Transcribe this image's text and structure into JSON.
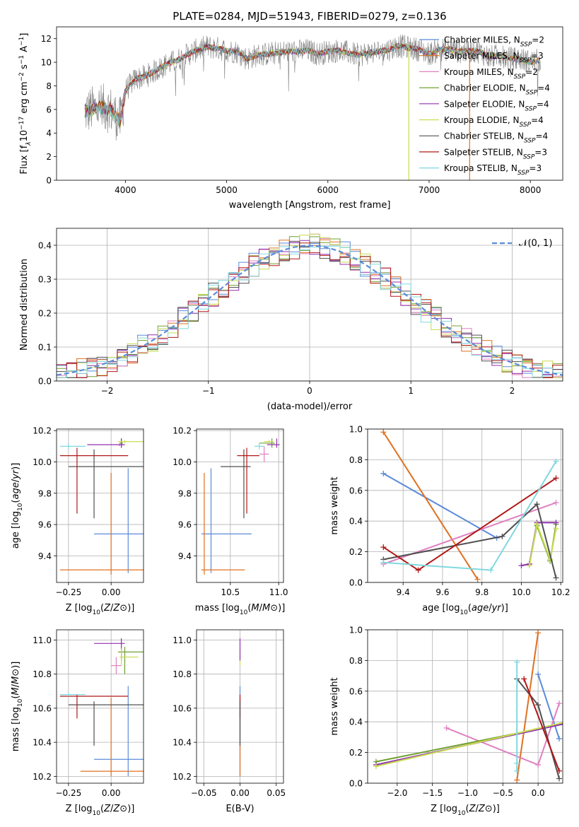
{
  "figure": {
    "title": "PLATE=0284, MJD=51943, FIBERID=0279, z=0.136"
  },
  "colors": {
    "Chabrier MILES": "#5b8bd9",
    "Salpeter MILES": "#e07020",
    "Kroupa MILES": "#e080c0",
    "Chabrier ELODIE": "#70a030",
    "Salpeter ELODIE": "#9030b0",
    "Kroupa ELODIE": "#c8dc50",
    "Chabrier STELIB": "#505050",
    "Salpeter STELIB": "#b01818",
    "Kroupa STELIB": "#80d8e0",
    "spectrum": "#808080",
    "gaussian": "#5b8bd9",
    "grid": "#b0b0b0"
  },
  "chart_data": [
    {
      "type": "line",
      "title": "PLATE=0284, MJD=51943, FIBERID=0279, z=0.136",
      "xlabel": "wavelength [Angstrom, rest frame]",
      "ylabel": "Flux [f_λ 10^-17 erg cm^-2 s^-1 A^-1]",
      "xlim": [
        3320,
        8320
      ],
      "ylim": [
        0,
        13
      ],
      "xticks": [
        4000,
        5000,
        6000,
        7000,
        8000
      ],
      "yticks": [
        0,
        2,
        4,
        6,
        8,
        10,
        12
      ],
      "grid": false,
      "legend": "upper right",
      "legend_entries": [
        {
          "model": "Chabrier MILES",
          "label": "Chabrier MILES, N",
          "sub": "SSP",
          "suffix": "=2"
        },
        {
          "model": "Salpeter MILES",
          "label": "Salpeter MILES, N",
          "sub": "SSP",
          "suffix": "=3"
        },
        {
          "model": "Kroupa MILES",
          "label": "Kroupa MILES, N",
          "sub": "SSP",
          "suffix": "=2"
        },
        {
          "model": "Chabrier ELODIE",
          "label": "Chabrier ELODIE, N",
          "sub": "SSP",
          "suffix": "=4"
        },
        {
          "model": "Salpeter ELODIE",
          "label": "Salpeter ELODIE, N",
          "sub": "SSP",
          "suffix": "=4"
        },
        {
          "model": "Kroupa ELODIE",
          "label": "Kroupa ELODIE, N",
          "sub": "SSP",
          "suffix": "=4"
        },
        {
          "model": "Chabrier STELIB",
          "label": "Chabrier STELIB, N",
          "sub": "SSP",
          "suffix": "=4"
        },
        {
          "model": "Salpeter STELIB",
          "label": "Salpeter STELIB, N",
          "sub": "SSP",
          "suffix": "=3"
        },
        {
          "model": "Kroupa STELIB",
          "label": "Kroupa STELIB, N",
          "sub": "SSP",
          "suffix": "=3"
        }
      ],
      "continuum": [
        [
          3600,
          5.8
        ],
        [
          3750,
          6.2
        ],
        [
          3850,
          6.0
        ],
        [
          3950,
          5.0
        ],
        [
          4000,
          7.6
        ],
        [
          4100,
          8.6
        ],
        [
          4200,
          8.8
        ],
        [
          4300,
          9.3
        ],
        [
          4400,
          9.8
        ],
        [
          4500,
          10.1
        ],
        [
          4600,
          10.6
        ],
        [
          4700,
          11.0
        ],
        [
          4800,
          11.3
        ],
        [
          4900,
          11.2
        ],
        [
          5000,
          11.0
        ],
        [
          5100,
          10.9
        ],
        [
          5200,
          10.3
        ],
        [
          5300,
          10.6
        ],
        [
          5400,
          10.7
        ],
        [
          5500,
          10.8
        ],
        [
          5600,
          10.9
        ],
        [
          5700,
          10.9
        ],
        [
          5800,
          11.0
        ],
        [
          5900,
          10.7
        ],
        [
          6000,
          10.9
        ],
        [
          6100,
          11.0
        ],
        [
          6200,
          10.8
        ],
        [
          6300,
          10.6
        ],
        [
          6400,
          10.8
        ],
        [
          6500,
          10.9
        ],
        [
          6600,
          11.1
        ],
        [
          6700,
          11.4
        ],
        [
          6800,
          11.2
        ],
        [
          6900,
          11.1
        ],
        [
          7000,
          10.7
        ],
        [
          7100,
          11.1
        ],
        [
          7200,
          11.1
        ],
        [
          7300,
          10.9
        ],
        [
          7400,
          11.0
        ],
        [
          7500,
          10.9
        ],
        [
          7600,
          10.4
        ],
        [
          7700,
          10.6
        ],
        [
          7800,
          10.3
        ],
        [
          7900,
          10.3
        ],
        [
          8000,
          10.0
        ],
        [
          8100,
          10.2
        ]
      ],
      "model_range": [
        3600,
        8100
      ],
      "gaps": [
        {
          "model": "Kroupa ELODIE",
          "from": 6800,
          "to": 6810
        },
        {
          "model": "Salpeter MILES",
          "from": 7400,
          "to": 7410
        }
      ]
    },
    {
      "type": "step",
      "xlabel": "(data-model)/error",
      "ylabel": "Normed distribution",
      "xlim": [
        -2.5,
        2.5
      ],
      "ylim": [
        0,
        0.45
      ],
      "xticks": [
        -2,
        -1,
        0,
        1,
        2
      ],
      "yticks": [
        0.0,
        0.1,
        0.2,
        0.3,
        0.4
      ],
      "grid": true,
      "legend": "upper right",
      "legend_label": "𝒩(0, 1)",
      "bins": 50,
      "gaussian": {
        "mean": 0,
        "sigma": 1
      }
    },
    {
      "type": "errorbar",
      "xlabel": "Z [log10(Z/Z⊙)]",
      "ylabel": "age  [log10(age/yr)]",
      "xlim": [
        -0.32,
        0.19
      ],
      "ylim": [
        9.23,
        10.21
      ],
      "xticks": [
        -0.25,
        0.0
      ],
      "yticks": [
        9.4,
        9.6,
        9.8,
        10.0,
        10.2
      ],
      "grid": true,
      "points": [
        {
          "model": "Chabrier MILES",
          "x": 0.1,
          "xerr": [
            0.2,
            0.1
          ],
          "y": 9.54,
          "yerr": [
            0.25,
            0.42
          ]
        },
        {
          "model": "Salpeter MILES",
          "x": 0.0,
          "xerr": [
            0.3,
            0.25
          ],
          "y": 9.31,
          "yerr": [
            0.03,
            0.62
          ]
        },
        {
          "model": "Kroupa MILES",
          "x": 0.05,
          "xerr": [
            0.02,
            0.03
          ],
          "y": 10.11,
          "yerr": [
            0.01,
            0.01
          ]
        },
        {
          "model": "Chabrier ELODIE",
          "x": 0.06,
          "xerr": [
            0.01,
            0.01
          ],
          "y": 10.12,
          "yerr": [
            0.03,
            0.03
          ]
        },
        {
          "model": "Salpeter ELODIE",
          "x": 0.06,
          "xerr": [
            0.2,
            0.02
          ],
          "y": 10.11,
          "yerr": [
            0.02,
            0.04
          ]
        },
        {
          "model": "Kroupa ELODIE",
          "x": 0.08,
          "xerr": [
            0.04,
            0.12
          ],
          "y": 10.13,
          "yerr": [
            0.01,
            0.01
          ]
        },
        {
          "model": "Chabrier STELIB",
          "x": -0.1,
          "xerr": [
            0.15,
            0.3
          ],
          "y": 9.97,
          "yerr": [
            0.33,
            0.11
          ]
        },
        {
          "model": "Salpeter STELIB",
          "x": -0.2,
          "xerr": [
            0.1,
            0.3
          ],
          "y": 10.04,
          "yerr": [
            0.37,
            0.05
          ]
        },
        {
          "model": "Kroupa STELIB",
          "x": -0.25,
          "xerr": [
            0.05,
            0.1
          ],
          "y": 10.1,
          "yerr": [
            0.02,
            0.02
          ]
        }
      ]
    },
    {
      "type": "errorbar",
      "xlabel": "mass [log10(M/M⊙)]",
      "xlim": [
        10.15,
        11.05
      ],
      "ylim": [
        9.23,
        10.21
      ],
      "xticks": [
        10.5,
        11.0
      ],
      "yticks": [
        9.4,
        9.6,
        9.8,
        10.0,
        10.2
      ],
      "grid": true,
      "points": [
        {
          "model": "Chabrier MILES",
          "x": 10.3,
          "xerr": [
            0.1,
            0.42
          ],
          "y": 9.54,
          "yerr": [
            0.25,
            0.42
          ]
        },
        {
          "model": "Salpeter MILES",
          "x": 10.23,
          "xerr": [
            0.03,
            0.42
          ],
          "y": 9.31,
          "yerr": [
            0.03,
            0.62
          ]
        },
        {
          "model": "Kroupa MILES",
          "x": 10.85,
          "xerr": [
            0.05,
            0.05
          ],
          "y": 10.05,
          "yerr": [
            0.05,
            0.05
          ]
        },
        {
          "model": "Chabrier ELODIE",
          "x": 10.93,
          "xerr": [
            0.13,
            0.03
          ],
          "y": 10.12,
          "yerr": [
            0.03,
            0.03
          ]
        },
        {
          "model": "Salpeter ELODIE",
          "x": 10.98,
          "xerr": [
            0.1,
            0.03
          ],
          "y": 10.11,
          "yerr": [
            0.02,
            0.04
          ]
        },
        {
          "model": "Kroupa ELODIE",
          "x": 10.9,
          "xerr": [
            0.05,
            0.05
          ],
          "y": 10.13,
          "yerr": [
            0.01,
            0.01
          ]
        },
        {
          "model": "Chabrier STELIB",
          "x": 10.64,
          "xerr": [
            0.24,
            0.07
          ],
          "y": 9.97,
          "yerr": [
            0.33,
            0.11
          ]
        },
        {
          "model": "Salpeter STELIB",
          "x": 10.67,
          "xerr": [
            0.1,
            0.13
          ],
          "y": 10.04,
          "yerr": [
            0.37,
            0.05
          ]
        },
        {
          "model": "Kroupa STELIB",
          "x": 10.8,
          "xerr": [
            0.05,
            0.05
          ],
          "y": 10.1,
          "yerr": [
            0.02,
            0.02
          ]
        }
      ]
    },
    {
      "type": "line",
      "xlabel": "age  [log10(age/yr)]",
      "ylabel": "mass weight",
      "xlim": [
        9.22,
        10.21
      ],
      "ylim": [
        0,
        1
      ],
      "xticks": [
        9.4,
        9.6,
        9.8,
        10.0,
        10.2
      ],
      "yticks": [
        0.0,
        0.2,
        0.4,
        0.6,
        0.8,
        1.0
      ],
      "grid": true,
      "series": [
        {
          "model": "Chabrier MILES",
          "x": [
            9.3,
            9.875
          ],
          "y": [
            0.71,
            0.29
          ]
        },
        {
          "model": "Salpeter MILES",
          "x": [
            9.3,
            9.778
          ],
          "y": [
            0.98,
            0.02
          ]
        },
        {
          "model": "Kroupa MILES",
          "x": [
            9.3,
            10.176
          ],
          "y": [
            0.12,
            0.52
          ]
        },
        {
          "model": "Chabrier ELODIE",
          "x": [
            10.041,
            10.079,
            10.146,
            10.176
          ],
          "y": [
            0.12,
            0.37,
            0.14,
            0.38
          ]
        },
        {
          "model": "Salpeter ELODIE",
          "x": [
            10.0,
            10.041,
            10.079,
            10.176
          ],
          "y": [
            0.11,
            0.12,
            0.39,
            0.39
          ]
        },
        {
          "model": "Kroupa ELODIE",
          "x": [
            10.041,
            10.079,
            10.146,
            10.176
          ],
          "y": [
            0.11,
            0.38,
            0.15,
            0.35
          ]
        },
        {
          "model": "Chabrier STELIB",
          "x": [
            9.3,
            9.903,
            10.079,
            10.176
          ],
          "y": [
            0.15,
            0.3,
            0.51,
            0.03
          ]
        },
        {
          "model": "Salpeter STELIB",
          "x": [
            9.3,
            9.477,
            10.176
          ],
          "y": [
            0.23,
            0.08,
            0.68
          ]
        },
        {
          "model": "Kroupa STELIB",
          "x": [
            9.3,
            9.845,
            10.176
          ],
          "y": [
            0.13,
            0.08,
            0.79
          ]
        }
      ]
    },
    {
      "type": "errorbar",
      "xlabel": "Z [log10(Z/Z⊙)]",
      "ylabel": "mass [log10(M/M⊙)]",
      "xlim": [
        -0.32,
        0.19
      ],
      "ylim": [
        10.16,
        11.06
      ],
      "xticks": [
        -0.25,
        0.0
      ],
      "yticks": [
        10.2,
        10.4,
        10.6,
        10.8,
        11.0
      ],
      "grid": true,
      "points": [
        {
          "model": "Chabrier MILES",
          "x": 0.1,
          "xerr": [
            0.2,
            0.1
          ],
          "y": 10.3,
          "yerr": [
            0.1,
            0.43
          ]
        },
        {
          "model": "Salpeter MILES",
          "x": 0.0,
          "xerr": [
            0.18,
            0.25
          ],
          "y": 10.23,
          "yerr": [
            0.03,
            0.43
          ]
        },
        {
          "model": "Kroupa MILES",
          "x": 0.03,
          "xerr": [
            0.03,
            0.03
          ],
          "y": 10.85,
          "yerr": [
            0.05,
            0.05
          ]
        },
        {
          "model": "Chabrier ELODIE",
          "x": 0.08,
          "xerr": [
            0.04,
            0.12
          ],
          "y": 10.93,
          "yerr": [
            0.13,
            0.03
          ]
        },
        {
          "model": "Salpeter ELODIE",
          "x": 0.06,
          "xerr": [
            0.16,
            0.02
          ],
          "y": 10.98,
          "yerr": [
            0.1,
            0.03
          ]
        },
        {
          "model": "Kroupa ELODIE",
          "x": 0.06,
          "xerr": [
            0.01,
            0.1
          ],
          "y": 10.9,
          "yerr": [
            0.05,
            0.05
          ]
        },
        {
          "model": "Chabrier STELIB",
          "x": -0.1,
          "xerr": [
            0.15,
            0.3
          ],
          "y": 10.62,
          "yerr": [
            0.24,
            0.02
          ]
        },
        {
          "model": "Salpeter STELIB",
          "x": -0.2,
          "xerr": [
            0.1,
            0.3
          ],
          "y": 10.67,
          "yerr": [
            0.13,
            0.01
          ]
        },
        {
          "model": "Kroupa STELIB",
          "x": -0.25,
          "xerr": [
            0.05,
            0.1
          ],
          "y": 10.68,
          "yerr": [
            0.01,
            0.01
          ]
        }
      ]
    },
    {
      "type": "errorbar",
      "xlabel": "E(B-V)",
      "xlim": [
        -0.06,
        0.06
      ],
      "ylim": [
        10.16,
        11.06
      ],
      "xticks": [
        -0.05,
        0.0,
        0.05
      ],
      "yticks": [
        10.2,
        10.4,
        10.6,
        10.8,
        11.0
      ],
      "grid": true,
      "points": [
        {
          "model": "Chabrier MILES",
          "x": 0.0,
          "xerr": [
            0,
            0
          ],
          "y": 10.3,
          "yerr": [
            0.1,
            0.43
          ]
        },
        {
          "model": "Salpeter MILES",
          "x": 0.0,
          "xerr": [
            0,
            0
          ],
          "y": 10.23,
          "yerr": [
            0.03,
            0.43
          ]
        },
        {
          "model": "Kroupa ELODIE",
          "x": 0.0,
          "xerr": [
            0,
            0
          ],
          "y": 10.9,
          "yerr": [
            0.05,
            0.05
          ]
        },
        {
          "model": "Salpeter ELODIE",
          "x": 0.0,
          "xerr": [
            0,
            0
          ],
          "y": 10.98,
          "yerr": [
            0.1,
            0.03
          ]
        },
        {
          "model": "Salpeter STELIB",
          "x": 0.0,
          "xerr": [
            0,
            0
          ],
          "y": 10.67,
          "yerr": [
            0.13,
            0.01
          ]
        },
        {
          "model": "Chabrier STELIB",
          "x": 0.0,
          "xerr": [
            0,
            0
          ],
          "y": 10.62,
          "yerr": [
            0.24,
            0.02
          ]
        }
      ]
    },
    {
      "type": "line",
      "xlabel": "Z [log10(Z/Z⊙)]",
      "ylabel": "mass weight",
      "xlim": [
        -2.42,
        0.35
      ],
      "ylim": [
        0,
        1
      ],
      "xticks": [
        -2.0,
        -1.5,
        -1.0,
        -0.5,
        0.0
      ],
      "yticks": [
        0.0,
        0.2,
        0.4,
        0.6,
        0.8,
        1.0
      ],
      "grid": true,
      "series": [
        {
          "model": "Chabrier MILES",
          "x": [
            0.0,
            0.3
          ],
          "y": [
            0.71,
            0.29
          ]
        },
        {
          "model": "Salpeter MILES",
          "x": [
            -0.3,
            0.0
          ],
          "y": [
            0.02,
            0.98
          ]
        },
        {
          "model": "Kroupa MILES",
          "x": [
            -1.3,
            0.0,
            0.3
          ],
          "y": [
            0.36,
            0.12,
            0.52
          ]
        },
        {
          "model": "Chabrier ELODIE",
          "x": [
            -2.3,
            0.4
          ],
          "y": [
            0.14,
            0.39
          ]
        },
        {
          "model": "Salpeter ELODIE",
          "x": [
            -2.3,
            0.4
          ],
          "y": [
            0.12,
            0.39
          ]
        },
        {
          "model": "Kroupa ELODIE",
          "x": [
            -2.3,
            0.4
          ],
          "y": [
            0.11,
            0.4
          ]
        },
        {
          "model": "Chabrier STELIB",
          "x": [
            -0.3,
            0.0,
            0.3
          ],
          "y": [
            0.68,
            0.51,
            0.03
          ]
        },
        {
          "model": "Salpeter STELIB",
          "x": [
            -0.2,
            0.3
          ],
          "y": [
            0.68,
            0.08
          ]
        },
        {
          "model": "Kroupa STELIB",
          "x": [
            -0.3,
            -0.3,
            -0.3
          ],
          "y": [
            0.79,
            0.13,
            0.08
          ]
        }
      ]
    }
  ]
}
